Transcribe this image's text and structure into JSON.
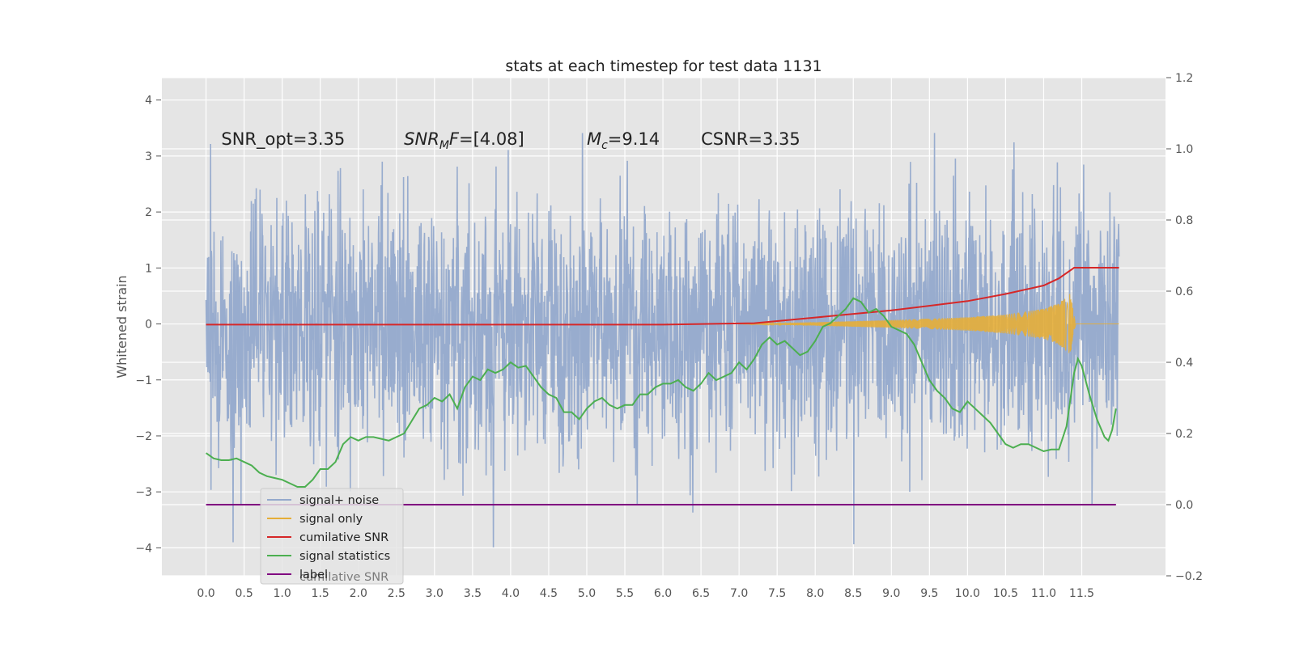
{
  "chart_data": {
    "type": "line",
    "title": "stats at each timestep for test data 1131",
    "ylabel": "Whitened strain",
    "xlabel": "",
    "xlim": [
      -0.58,
      12.6
    ],
    "ylim_left": [
      -4.5,
      4.4
    ],
    "ylim_right": [
      -0.2,
      1.2
    ],
    "x_ticks": [
      "0.0",
      "0.5",
      "1.0",
      "1.5",
      "2.0",
      "2.5",
      "3.0",
      "3.5",
      "4.0",
      "4.5",
      "5.0",
      "5.5",
      "6.0",
      "6.5",
      "7.0",
      "7.5",
      "8.0",
      "8.5",
      "9.0",
      "9.5",
      "10.0",
      "10.5",
      "11.0",
      "11.5"
    ],
    "y_ticks_left": [
      "4",
      "3",
      "2",
      "1",
      "0",
      "−1",
      "−2",
      "−3",
      "−4"
    ],
    "y_ticks_right": [
      "1.2",
      "1.0",
      "0.8",
      "0.6",
      "0.4",
      "0.2",
      "0.0",
      "−0.2"
    ],
    "grid": true,
    "legend_position": "lower-left",
    "annotations": [
      {
        "text": "SNR_opt=3.35",
        "x": 0.2,
        "y": 3.2
      },
      {
        "text": "SNR",
        "sub": "M",
        "rest": "F=[4.08]",
        "x": 2.6,
        "y": 3.2
      },
      {
        "text": "M",
        "sub": "c",
        "rest": "=9.14",
        "x": 5.0,
        "y": 3.2
      },
      {
        "text": "CSNR=3.35",
        "x": 6.5,
        "y": 3.2
      }
    ],
    "series": [
      {
        "name": "signal+ noise",
        "axis": "left",
        "color": "#94a9cc",
        "x_range": [
          0.0,
          11.99
        ],
        "envelope_upper": [
          2.4,
          2.7,
          2.5,
          2.6,
          2.5,
          2.7,
          2.6,
          2.6,
          2.5,
          2.7,
          2.6,
          2.8,
          2.6,
          2.7,
          2.7,
          2.6,
          2.8,
          2.7,
          2.6,
          2.7,
          2.6,
          2.8,
          2.7,
          2.7
        ],
        "envelope_lower": [
          -2.5,
          -2.6,
          -2.7,
          -2.6,
          -2.5,
          -2.7,
          -2.6,
          -2.6,
          -2.7,
          -2.6,
          -2.6,
          -2.8,
          -2.6,
          -2.7,
          -2.7,
          -2.6,
          -2.7,
          -2.7,
          -2.8,
          -2.6,
          -2.8,
          -2.6,
          -2.6,
          -2.7
        ]
      },
      {
        "name": "signal only",
        "axis": "left",
        "color": "#e5ae38",
        "x_range": [
          7.0,
          11.99
        ],
        "chirp_end": 11.42,
        "amplitude_points": [
          [
            7.0,
            0.0
          ],
          [
            8.0,
            0.03
          ],
          [
            9.0,
            0.07
          ],
          [
            10.0,
            0.12
          ],
          [
            10.5,
            0.17
          ],
          [
            11.0,
            0.27
          ],
          [
            11.2,
            0.37
          ],
          [
            11.35,
            0.55
          ],
          [
            11.42,
            0.0
          ]
        ]
      },
      {
        "name": "cumilative SNR",
        "axis": "right",
        "color": "#d62728",
        "points": [
          [
            0.0,
            0.506
          ],
          [
            6.0,
            0.506
          ],
          [
            7.2,
            0.51
          ],
          [
            8.0,
            0.526
          ],
          [
            9.0,
            0.546
          ],
          [
            10.0,
            0.572
          ],
          [
            10.5,
            0.592
          ],
          [
            11.0,
            0.616
          ],
          [
            11.2,
            0.636
          ],
          [
            11.4,
            0.666
          ],
          [
            11.99,
            0.666
          ]
        ]
      },
      {
        "name": "signal statistics",
        "axis": "right",
        "color": "#4caf50",
        "points": [
          [
            0.0,
            0.145
          ],
          [
            0.1,
            0.13
          ],
          [
            0.2,
            0.125
          ],
          [
            0.3,
            0.125
          ],
          [
            0.4,
            0.13
          ],
          [
            0.5,
            0.12
          ],
          [
            0.6,
            0.11
          ],
          [
            0.7,
            0.09
          ],
          [
            0.8,
            0.08
          ],
          [
            0.9,
            0.075
          ],
          [
            1.0,
            0.07
          ],
          [
            1.1,
            0.06
          ],
          [
            1.2,
            0.05
          ],
          [
            1.3,
            0.05
          ],
          [
            1.4,
            0.07
          ],
          [
            1.5,
            0.1
          ],
          [
            1.6,
            0.1
          ],
          [
            1.7,
            0.12
          ],
          [
            1.8,
            0.17
          ],
          [
            1.9,
            0.19
          ],
          [
            2.0,
            0.18
          ],
          [
            2.1,
            0.19
          ],
          [
            2.2,
            0.19
          ],
          [
            2.3,
            0.185
          ],
          [
            2.4,
            0.18
          ],
          [
            2.5,
            0.19
          ],
          [
            2.6,
            0.2
          ],
          [
            2.7,
            0.235
          ],
          [
            2.8,
            0.27
          ],
          [
            2.9,
            0.28
          ],
          [
            3.0,
            0.3
          ],
          [
            3.1,
            0.29
          ],
          [
            3.2,
            0.31
          ],
          [
            3.3,
            0.27
          ],
          [
            3.4,
            0.33
          ],
          [
            3.5,
            0.36
          ],
          [
            3.6,
            0.35
          ],
          [
            3.7,
            0.38
          ],
          [
            3.8,
            0.37
          ],
          [
            3.9,
            0.38
          ],
          [
            4.0,
            0.4
          ],
          [
            4.1,
            0.385
          ],
          [
            4.2,
            0.39
          ],
          [
            4.3,
            0.36
          ],
          [
            4.4,
            0.33
          ],
          [
            4.5,
            0.31
          ],
          [
            4.6,
            0.3
          ],
          [
            4.7,
            0.26
          ],
          [
            4.8,
            0.26
          ],
          [
            4.9,
            0.24
          ],
          [
            5.0,
            0.27
          ],
          [
            5.1,
            0.29
          ],
          [
            5.2,
            0.3
          ],
          [
            5.3,
            0.28
          ],
          [
            5.4,
            0.27
          ],
          [
            5.5,
            0.28
          ],
          [
            5.6,
            0.28
          ],
          [
            5.7,
            0.31
          ],
          [
            5.8,
            0.31
          ],
          [
            5.9,
            0.33
          ],
          [
            6.0,
            0.34
          ],
          [
            6.1,
            0.34
          ],
          [
            6.2,
            0.35
          ],
          [
            6.3,
            0.33
          ],
          [
            6.4,
            0.32
          ],
          [
            6.5,
            0.34
          ],
          [
            6.6,
            0.37
          ],
          [
            6.7,
            0.35
          ],
          [
            6.8,
            0.36
          ],
          [
            6.9,
            0.37
          ],
          [
            7.0,
            0.4
          ],
          [
            7.1,
            0.38
          ],
          [
            7.2,
            0.41
          ],
          [
            7.3,
            0.45
          ],
          [
            7.4,
            0.47
          ],
          [
            7.5,
            0.45
          ],
          [
            7.6,
            0.46
          ],
          [
            7.7,
            0.44
          ],
          [
            7.8,
            0.42
          ],
          [
            7.9,
            0.43
          ],
          [
            8.0,
            0.46
          ],
          [
            8.1,
            0.5
          ],
          [
            8.2,
            0.51
          ],
          [
            8.3,
            0.53
          ],
          [
            8.4,
            0.55
          ],
          [
            8.5,
            0.58
          ],
          [
            8.6,
            0.57
          ],
          [
            8.7,
            0.54
          ],
          [
            8.8,
            0.55
          ],
          [
            8.9,
            0.53
          ],
          [
            9.0,
            0.5
          ],
          [
            9.1,
            0.49
          ],
          [
            9.2,
            0.48
          ],
          [
            9.3,
            0.45
          ],
          [
            9.4,
            0.4
          ],
          [
            9.5,
            0.35
          ],
          [
            9.6,
            0.32
          ],
          [
            9.7,
            0.3
          ],
          [
            9.8,
            0.27
          ],
          [
            9.9,
            0.26
          ],
          [
            10.0,
            0.29
          ],
          [
            10.1,
            0.27
          ],
          [
            10.2,
            0.25
          ],
          [
            10.3,
            0.23
          ],
          [
            10.4,
            0.2
          ],
          [
            10.5,
            0.17
          ],
          [
            10.6,
            0.16
          ],
          [
            10.7,
            0.17
          ],
          [
            10.8,
            0.17
          ],
          [
            10.9,
            0.16
          ],
          [
            11.0,
            0.15
          ],
          [
            11.1,
            0.155
          ],
          [
            11.2,
            0.155
          ],
          [
            11.3,
            0.22
          ],
          [
            11.4,
            0.37
          ],
          [
            11.45,
            0.41
          ],
          [
            11.5,
            0.39
          ],
          [
            11.6,
            0.31
          ],
          [
            11.7,
            0.24
          ],
          [
            11.8,
            0.19
          ],
          [
            11.85,
            0.18
          ],
          [
            11.9,
            0.21
          ],
          [
            11.95,
            0.27
          ]
        ]
      },
      {
        "name": "label",
        "axis": "right",
        "color": "#800080",
        "points": [
          [
            0.0,
            0.0
          ],
          [
            11.95,
            0.0
          ]
        ]
      }
    ],
    "legend_overlap_text": "cumilative SNR",
    "random_seed": 1131
  }
}
